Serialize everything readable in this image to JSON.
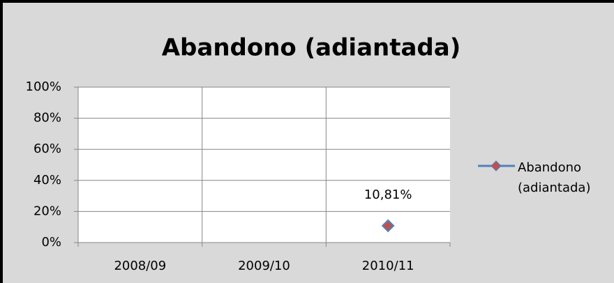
{
  "chart_data": {
    "type": "line",
    "title": "Abandono (adiantada)",
    "categories": [
      "2008/09",
      "2009/10",
      "2010/11"
    ],
    "series": [
      {
        "name": "Abandono (adiantada)",
        "color": "#4f81bd",
        "marker_color": "#c0504d",
        "values": [
          null,
          null,
          10.81
        ],
        "value_labels": [
          null,
          null,
          "10,81%"
        ]
      }
    ],
    "ylim": [
      0,
      100
    ],
    "yticks": [
      {
        "value": 0,
        "label": "0%"
      },
      {
        "value": 20,
        "label": "20%"
      },
      {
        "value": 40,
        "label": "40%"
      },
      {
        "value": 60,
        "label": "60%"
      },
      {
        "value": 80,
        "label": "80%"
      },
      {
        "value": 100,
        "label": "100%"
      }
    ],
    "grid": true,
    "legend": "right"
  }
}
